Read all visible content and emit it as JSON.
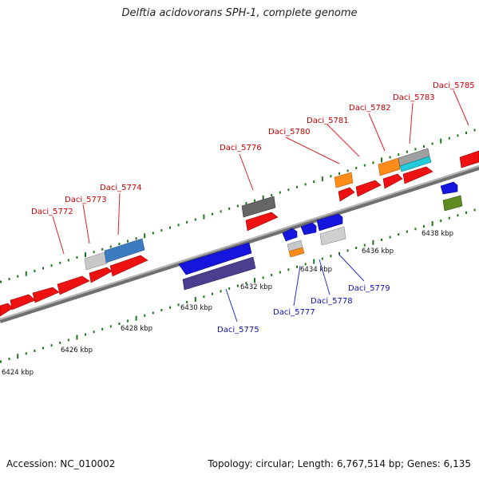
{
  "title": "Delftia acidovorans SPH-1, complete genome",
  "footer": {
    "accession": "Accession: NC_010002",
    "summary": "Topology: circular; Length: 6,767,514 bp; Genes: 6,135"
  },
  "colors": {
    "forward_label": "#cc0000",
    "reverse_label": "#1010b0",
    "backbone": "#8a8a8a",
    "tick": "#1a7a1a"
  },
  "scale_labels": [
    "6424 kbp",
    "6426 kbp",
    "6428 kbp",
    "6430 kbp",
    "6432 kbp",
    "6434 kbp",
    "6436 kbp",
    "6438 kbp"
  ],
  "forward_gene_labels": [
    "Daci_5772",
    "Daci_5773",
    "Daci_5774",
    "Daci_5776",
    "Daci_5780",
    "Daci_5781",
    "Daci_5782",
    "Daci_5783",
    "Daci_5785"
  ],
  "reverse_gene_labels": [
    "Daci_5775",
    "Daci_5777",
    "Daci_5778",
    "Daci_5779"
  ]
}
